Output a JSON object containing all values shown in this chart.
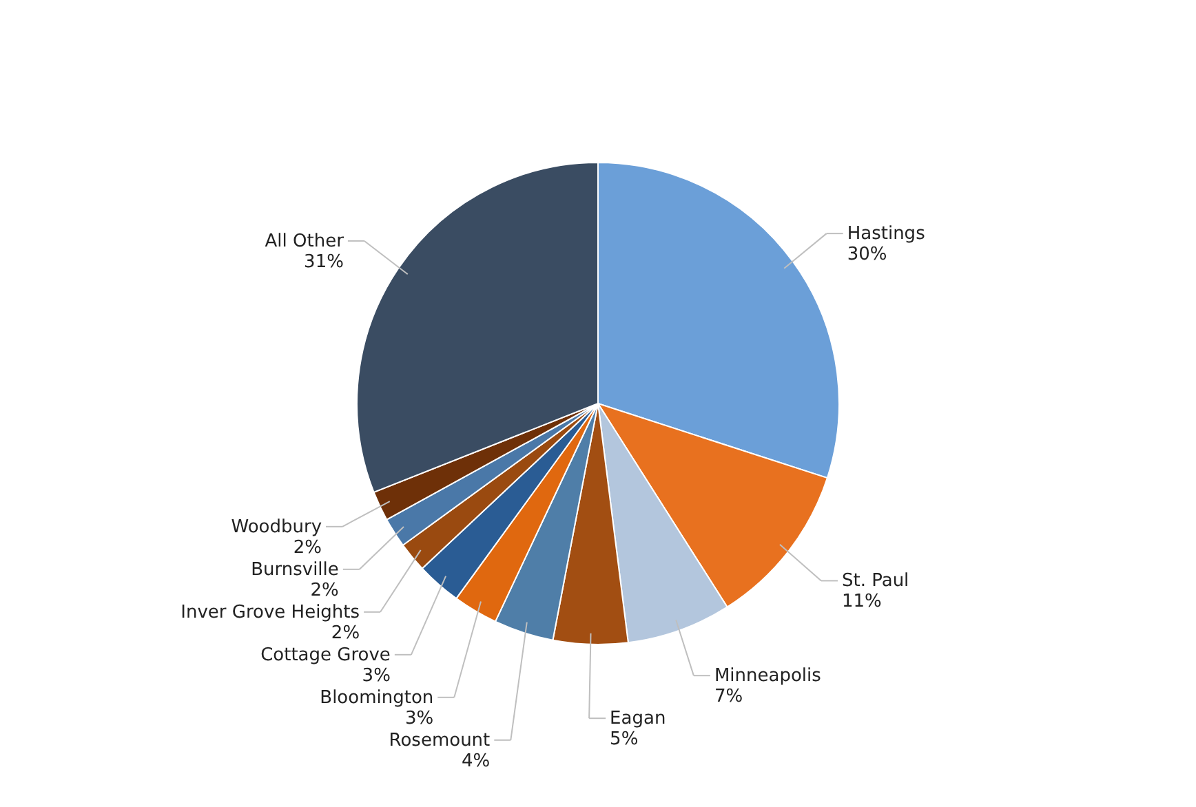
{
  "chart_data": {
    "type": "pie",
    "categories": [
      "Hastings",
      "St. Paul",
      "Minneapolis",
      "Eagan",
      "Rosemount",
      "Bloomington",
      "Cottage Grove",
      "Inver Grove Heights",
      "Burnsville",
      "Woodbury",
      "All Other"
    ],
    "values": [
      30,
      11,
      7,
      5,
      4,
      3,
      3,
      2,
      2,
      2,
      31
    ],
    "value_labels": [
      "30%",
      "11%",
      "7%",
      "5%",
      "4%",
      "3%",
      "3%",
      "2%",
      "2%",
      "2%",
      "31%"
    ],
    "colors": [
      "#6b9fd8",
      "#e8711f",
      "#b3c6dd",
      "#a24e12",
      "#4f7ea8",
      "#e0680f",
      "#2a5c94",
      "#9a4a10",
      "#4a78a8",
      "#6e3008",
      "#3a4c62"
    ]
  }
}
